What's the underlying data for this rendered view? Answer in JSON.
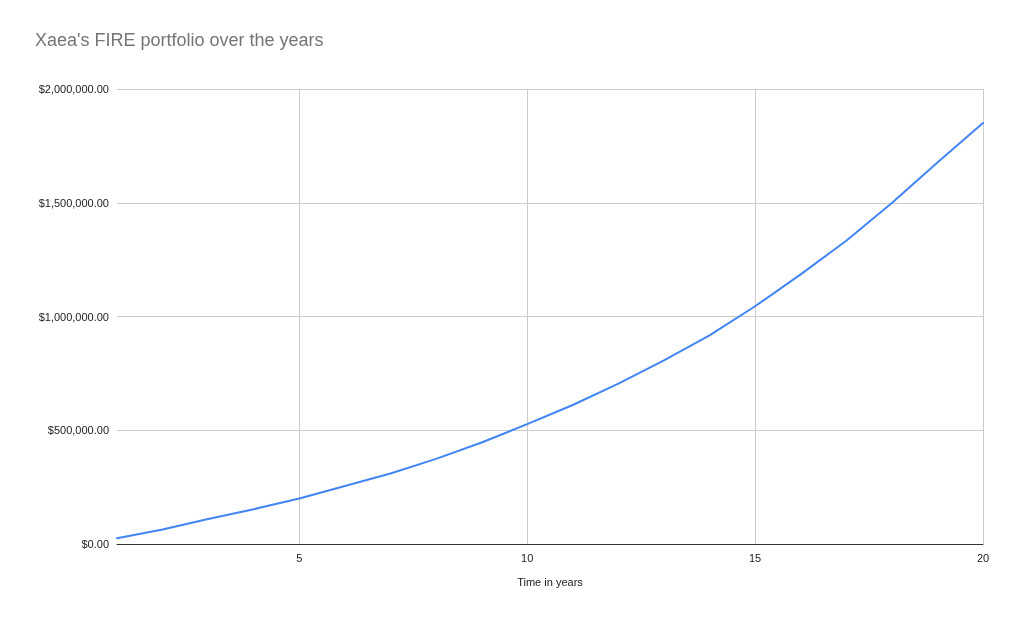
{
  "chart_data": {
    "type": "line",
    "title": "Xaea's FIRE portfolio over the years",
    "xlabel": "Time in years",
    "x": [
      1,
      2,
      3,
      4,
      5,
      6,
      7,
      8,
      9,
      10,
      11,
      12,
      13,
      14,
      15,
      16,
      17,
      18,
      19,
      20
    ],
    "series": [
      {
        "color": "#4285f4",
        "values": [
          25000,
          64000,
          110000,
          153000,
          200000,
          255000,
          310000,
          374000,
          446000,
          527000,
          611000,
          705000,
          807000,
          917000,
          1045000,
          1185000,
          1333000,
          1499000,
          1677000,
          1851000
        ]
      }
    ],
    "xlim": [
      1,
      20
    ],
    "xticks": [
      5,
      10,
      15,
      20
    ],
    "ylim": [
      0,
      2000000
    ],
    "yticks": [
      {
        "value": 0,
        "label": "$0.00"
      },
      {
        "value": 500000,
        "label": "$500,000.00"
      },
      {
        "value": 1000000,
        "label": "$1,000,000.00"
      },
      {
        "value": 1500000,
        "label": "$1,500,000.00"
      },
      {
        "value": 2000000,
        "label": "$2,000,000.00"
      }
    ],
    "grid": true,
    "marker": "none",
    "line_style": "solid"
  }
}
